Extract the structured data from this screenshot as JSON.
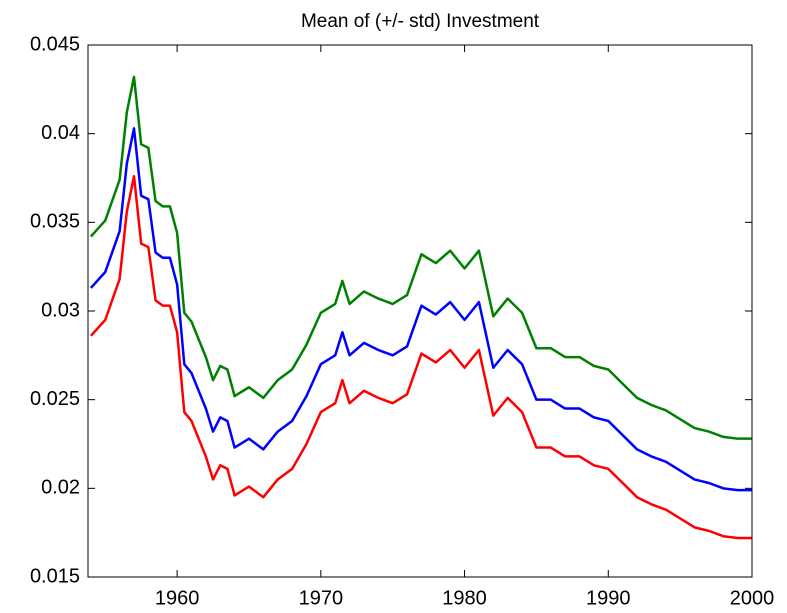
{
  "chart_data": {
    "type": "line",
    "title": "Mean of (+/- std) Investment",
    "x": [
      1954,
      1955,
      1956,
      1956.5,
      1957,
      1957.5,
      1958,
      1958.5,
      1959,
      1959.5,
      1960,
      1960.5,
      1961,
      1961.5,
      1962,
      1962.5,
      1963,
      1963.5,
      1964,
      1965,
      1966,
      1967,
      1968,
      1969,
      1970,
      1971,
      1971.5,
      1972,
      1973,
      1974,
      1975,
      1976,
      1977,
      1978,
      1979,
      1980,
      1981,
      1982,
      1983,
      1984,
      1985,
      1986,
      1987,
      1988,
      1989,
      1990,
      1991,
      1992,
      1993,
      1994,
      1995,
      1996,
      1997,
      1998,
      1999,
      2000
    ],
    "series": [
      {
        "color": "#008000",
        "values": [
          0.0342,
          0.0351,
          0.0374,
          0.0412,
          0.0432,
          0.0394,
          0.0392,
          0.0362,
          0.0359,
          0.0359,
          0.0344,
          0.0299,
          0.0294,
          0.0284,
          0.0274,
          0.0261,
          0.0269,
          0.0267,
          0.0252,
          0.0257,
          0.0251,
          0.0261,
          0.0267,
          0.0281,
          0.0299,
          0.0304,
          0.0317,
          0.0304,
          0.0311,
          0.0307,
          0.0304,
          0.0309,
          0.0332,
          0.0327,
          0.0334,
          0.0324,
          0.0334,
          0.0297,
          0.0307,
          0.0299,
          0.0279,
          0.0279,
          0.0274,
          0.0274,
          0.0269,
          0.0267,
          0.0259,
          0.0251,
          0.0247,
          0.0244,
          0.0239,
          0.0234,
          0.0232,
          0.0229,
          0.0228,
          0.0228
        ]
      },
      {
        "color": "#0000ff",
        "values": [
          0.0313,
          0.0322,
          0.0345,
          0.0383,
          0.0403,
          0.0365,
          0.0363,
          0.0333,
          0.033,
          0.033,
          0.0315,
          0.027,
          0.0265,
          0.0255,
          0.0245,
          0.0232,
          0.024,
          0.0238,
          0.0223,
          0.0228,
          0.0222,
          0.0232,
          0.0238,
          0.0252,
          0.027,
          0.0275,
          0.0288,
          0.0275,
          0.0282,
          0.0278,
          0.0275,
          0.028,
          0.0303,
          0.0298,
          0.0305,
          0.0295,
          0.0305,
          0.0268,
          0.0278,
          0.027,
          0.025,
          0.025,
          0.0245,
          0.0245,
          0.024,
          0.0238,
          0.023,
          0.0222,
          0.0218,
          0.0215,
          0.021,
          0.0205,
          0.0203,
          0.02,
          0.0199,
          0.0199
        ]
      },
      {
        "color": "#ff0000",
        "values": [
          0.0286,
          0.0295,
          0.0318,
          0.0356,
          0.0376,
          0.0338,
          0.0336,
          0.0306,
          0.0303,
          0.0303,
          0.0288,
          0.0243,
          0.0238,
          0.0228,
          0.0218,
          0.0205,
          0.0213,
          0.0211,
          0.0196,
          0.0201,
          0.0195,
          0.0205,
          0.0211,
          0.0225,
          0.0243,
          0.0248,
          0.0261,
          0.0248,
          0.0255,
          0.0251,
          0.0248,
          0.0253,
          0.0276,
          0.0271,
          0.0278,
          0.0268,
          0.0278,
          0.0241,
          0.0251,
          0.0243,
          0.0223,
          0.0223,
          0.0218,
          0.0218,
          0.0213,
          0.0211,
          0.0203,
          0.0195,
          0.0191,
          0.0188,
          0.0183,
          0.0178,
          0.0176,
          0.0173,
          0.0172,
          0.0172
        ]
      }
    ],
    "xlim": [
      1953.8,
      2000
    ],
    "xticks": [
      1960,
      1970,
      1980,
      1990,
      2000
    ],
    "ylim": [
      0.015,
      0.045
    ],
    "yticks": [
      0.015,
      0.02,
      0.025,
      0.03,
      0.035,
      0.04,
      0.045
    ],
    "grid": false
  }
}
